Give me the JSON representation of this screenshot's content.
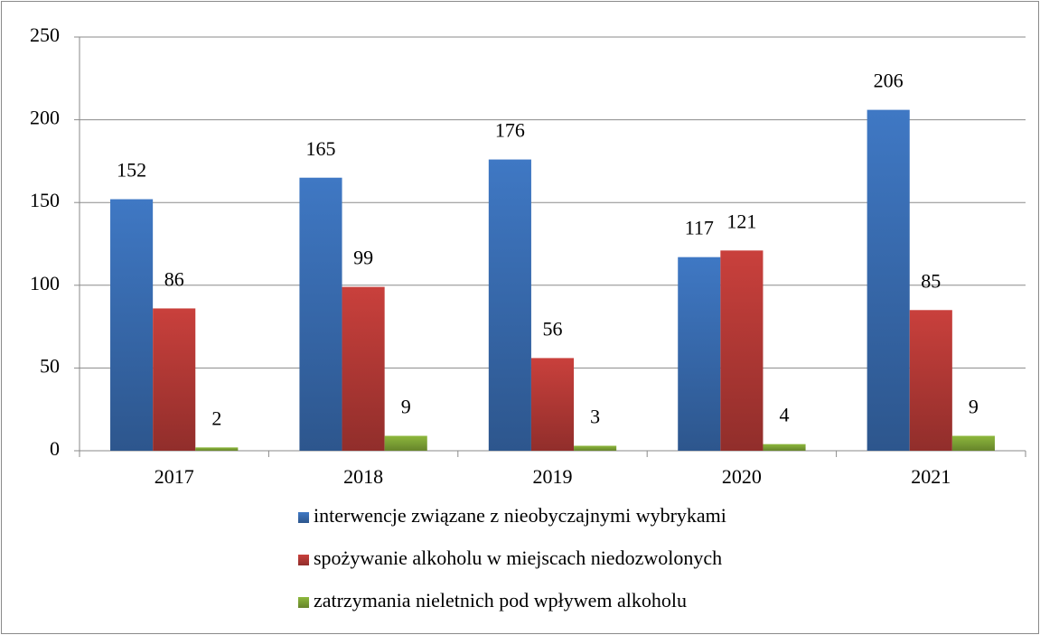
{
  "chart_data": {
    "type": "bar",
    "categories": [
      "2017",
      "2018",
      "2019",
      "2020",
      "2021"
    ],
    "series": [
      {
        "name": "interwencje związane z nieobyczajnymi wybrykami",
        "color": "#3f78c4",
        "values": [
          152,
          165,
          176,
          117,
          206
        ]
      },
      {
        "name": "spożywanie alkoholu w miejscach niedozwolonych",
        "color": "#c9403c",
        "values": [
          86,
          99,
          56,
          121,
          85
        ]
      },
      {
        "name": "zatrzymania nieletnich pod wpływem alkoholu",
        "color": "#8db83c",
        "values": [
          2,
          9,
          3,
          4,
          9
        ]
      }
    ],
    "ylim": [
      0,
      250
    ],
    "yticks": [
      0,
      50,
      100,
      150,
      200,
      250
    ],
    "grid": true,
    "legend": "bottom"
  }
}
